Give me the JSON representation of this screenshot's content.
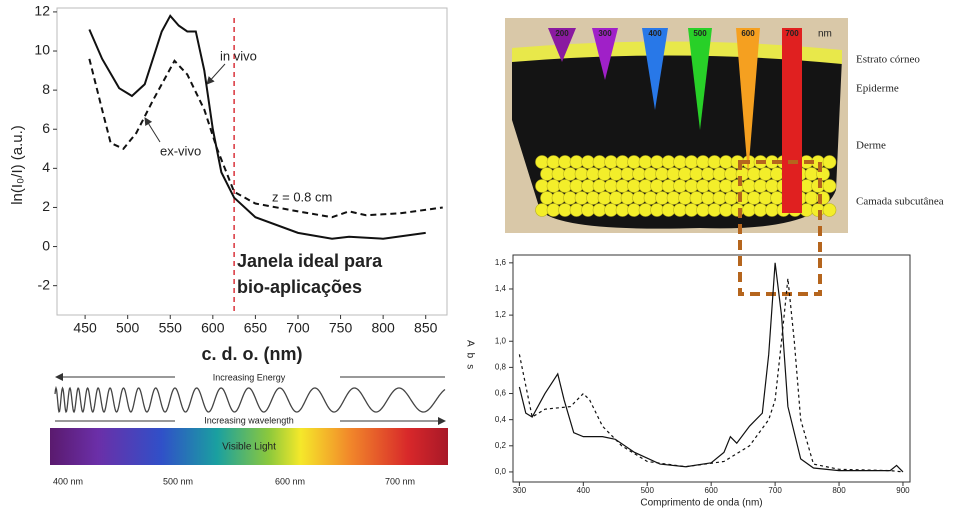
{
  "chart_data": [
    {
      "type": "line",
      "xlabel": "c. d. o. (nm)",
      "ylabel": "ln(I₀/I) (a.u.)",
      "xlim": [
        417,
        875
      ],
      "ylim": [
        -3.5,
        12.2
      ],
      "xticks": [
        450,
        500,
        550,
        600,
        650,
        700,
        750,
        800,
        850
      ],
      "yticks": [
        -2,
        0,
        2,
        4,
        6,
        8,
        10,
        12
      ],
      "vline": 625,
      "vline_color": "#d9323a",
      "annotations": [
        "z = 0.8 cm",
        "Janela ideal para",
        "bio-aplicações"
      ],
      "series": [
        {
          "name": "in vivo",
          "color": "#111",
          "dash": false,
          "x": [
            455,
            470,
            490,
            505,
            520,
            540,
            550,
            560,
            570,
            580,
            590,
            600,
            610,
            625,
            650,
            700,
            740,
            760,
            800,
            850
          ],
          "values": [
            11.1,
            9.6,
            8.1,
            7.7,
            8.3,
            11.0,
            11.8,
            11.3,
            11.0,
            11.0,
            9.0,
            6.0,
            3.8,
            2.5,
            1.5,
            0.7,
            0.4,
            0.5,
            0.4,
            0.7
          ]
        },
        {
          "name": "ex-vivo",
          "color": "#111",
          "dash": true,
          "x": [
            455,
            470,
            480,
            495,
            510,
            530,
            555,
            570,
            590,
            605,
            625,
            650,
            700,
            740,
            760,
            780,
            820,
            870
          ],
          "values": [
            9.6,
            7.0,
            5.3,
            5.0,
            5.8,
            7.5,
            9.5,
            8.8,
            7.0,
            5.0,
            2.8,
            2.2,
            1.8,
            1.5,
            1.8,
            1.6,
            1.7,
            2.0
          ]
        }
      ]
    },
    {
      "type": "line",
      "xlabel": "Comprimento de onda (nm)",
      "ylabel": "Abs",
      "xlim": [
        290,
        911
      ],
      "ylim": [
        -0.077,
        1.66
      ],
      "xticks": [
        300,
        400,
        500,
        600,
        700,
        800,
        900
      ],
      "yticks": [
        {
          "value": 0,
          "label": "0,0"
        },
        {
          "value": 0.2,
          "label": "0,2"
        },
        {
          "value": 0.4,
          "label": "0,4"
        },
        {
          "value": 0.6,
          "label": "0,6"
        },
        {
          "value": 0.8,
          "label": "0,8"
        },
        {
          "value": 1.0,
          "label": "1,0"
        },
        {
          "value": 1.2,
          "label": "1,2"
        },
        {
          "value": 1.4,
          "label": "1,4"
        },
        {
          "value": 1.6,
          "label": "1,6"
        }
      ],
      "series": [
        {
          "color": "#111",
          "dash": false,
          "x": [
            300,
            310,
            320,
            340,
            360,
            370,
            385,
            400,
            430,
            450,
            480,
            520,
            560,
            600,
            620,
            630,
            640,
            660,
            680,
            690,
            700,
            710,
            720,
            740,
            760,
            800,
            880,
            890,
            900
          ],
          "values": [
            0.65,
            0.45,
            0.42,
            0.6,
            0.75,
            0.55,
            0.3,
            0.27,
            0.27,
            0.25,
            0.15,
            0.06,
            0.04,
            0.07,
            0.15,
            0.27,
            0.22,
            0.35,
            0.45,
            0.9,
            1.6,
            1.2,
            0.5,
            0.1,
            0.03,
            0.01,
            0.01,
            0.05,
            0.0
          ]
        },
        {
          "color": "#111",
          "dash": true,
          "x": [
            300,
            320,
            340,
            380,
            400,
            410,
            430,
            460,
            500,
            560,
            620,
            660,
            690,
            700,
            710,
            720,
            730,
            740,
            760,
            800,
            880,
            900
          ],
          "values": [
            0.9,
            0.42,
            0.48,
            0.5,
            0.6,
            0.55,
            0.35,
            0.2,
            0.08,
            0.04,
            0.08,
            0.2,
            0.4,
            0.55,
            1.0,
            1.48,
            1.0,
            0.4,
            0.06,
            0.02,
            0.01,
            0.0
          ]
        }
      ]
    }
  ],
  "spectrum": {
    "energy": "Increasing Energy",
    "wavelength": "Increasing wavelength",
    "bar": "Visible Light",
    "scale": [
      "400 nm",
      "500 nm",
      "600 nm",
      "700 nm"
    ]
  },
  "skin": {
    "beams": [
      "200",
      "300",
      "400",
      "500",
      "600",
      "700"
    ],
    "unit": "nm",
    "layers": [
      "Estrato córneo",
      "Epiderme",
      "Derme",
      "Camada subcutânea"
    ]
  }
}
